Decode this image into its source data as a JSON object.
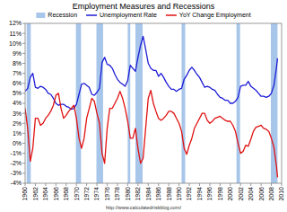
{
  "chart_data": {
    "type": "line",
    "title": "Employment Measures and Recessions",
    "source": "http://www.calculatedriskblog.com/",
    "legend": "top",
    "grid": false,
    "x": [
      1960,
      1960.5,
      1961,
      1961.5,
      1962,
      1962.5,
      1963,
      1963.5,
      1964,
      1964.5,
      1965,
      1965.5,
      1966,
      1966.5,
      1967,
      1967.5,
      1968,
      1968.5,
      1969,
      1969.5,
      1970,
      1970.5,
      1971,
      1971.5,
      1972,
      1972.5,
      1973,
      1973.5,
      1974,
      1974.5,
      1975,
      1975.5,
      1976,
      1976.5,
      1977,
      1977.5,
      1978,
      1978.5,
      1979,
      1979.5,
      1980,
      1980.5,
      1981,
      1981.5,
      1982,
      1982.5,
      1983,
      1983.5,
      1984,
      1984.5,
      1985,
      1985.5,
      1986,
      1986.5,
      1987,
      1987.5,
      1988,
      1988.5,
      1989,
      1989.5,
      1990,
      1990.5,
      1991,
      1991.5,
      1992,
      1992.5,
      1993,
      1993.5,
      1994,
      1994.5,
      1995,
      1995.5,
      1996,
      1996.5,
      1997,
      1997.5,
      1998,
      1998.5,
      1999,
      1999.5,
      2000,
      2000.5,
      2001,
      2001.5,
      2002,
      2002.5,
      2003,
      2003.5,
      2004,
      2004.5,
      2005,
      2005.5,
      2006,
      2006.5,
      2007,
      2007.5,
      2008,
      2008.5,
      2009,
      2009.2
    ],
    "series": [
      {
        "name": "Recession",
        "type": "span",
        "color": "#a8c6ea",
        "values": [
          [
            1960.3,
            1961.1
          ],
          [
            1969.9,
            1970.9
          ],
          [
            1973.9,
            1975.2
          ],
          [
            1980.0,
            1980.5
          ],
          [
            1981.5,
            1982.9
          ],
          [
            1990.5,
            1991.2
          ],
          [
            2001.2,
            2001.9
          ],
          [
            2007.9,
            2009.2
          ]
        ]
      },
      {
        "name": "Unemployment Rate",
        "type": "line",
        "color": "#1c1cd6",
        "values": [
          5.2,
          5.5,
          6.6,
          7.0,
          5.6,
          5.5,
          5.7,
          5.6,
          5.4,
          5.0,
          4.9,
          4.5,
          4.0,
          3.8,
          3.9,
          3.9,
          3.7,
          3.6,
          3.4,
          3.5,
          3.9,
          4.9,
          5.9,
          6.0,
          5.8,
          5.6,
          4.9,
          4.8,
          5.1,
          5.5,
          8.1,
          8.6,
          7.9,
          7.8,
          7.5,
          6.9,
          6.4,
          6.1,
          5.9,
          5.7,
          6.3,
          7.8,
          7.5,
          7.2,
          8.6,
          9.8,
          10.7,
          9.4,
          8.0,
          7.5,
          7.3,
          7.3,
          6.7,
          7.0,
          6.6,
          6.1,
          5.7,
          5.4,
          5.4,
          5.2,
          5.4,
          5.5,
          6.4,
          6.8,
          7.3,
          7.6,
          7.3,
          6.9,
          6.6,
          6.1,
          5.6,
          5.7,
          5.6,
          5.4,
          5.3,
          4.9,
          4.6,
          4.5,
          4.3,
          4.3,
          4.0,
          4.0,
          4.2,
          4.6,
          5.7,
          5.8,
          5.8,
          6.2,
          5.7,
          5.5,
          5.3,
          5.0,
          4.7,
          4.7,
          4.6,
          4.7,
          5.0,
          5.8,
          7.6,
          8.5
        ]
      },
      {
        "name": "YoY Change Employment",
        "type": "line",
        "color": "#e01010",
        "values": [
          3.5,
          1.5,
          -1.8,
          -0.5,
          2.5,
          2.5,
          1.8,
          2.0,
          2.5,
          2.8,
          3.2,
          3.8,
          4.8,
          5.0,
          3.5,
          2.5,
          2.8,
          3.2,
          3.5,
          3.8,
          2.5,
          0.5,
          -0.5,
          0.5,
          2.5,
          3.5,
          4.5,
          4.2,
          3.0,
          2.0,
          -1.0,
          -2.0,
          1.5,
          3.5,
          3.5,
          4.0,
          4.5,
          5.2,
          4.5,
          3.5,
          2.2,
          0.5,
          0.5,
          1.5,
          -0.5,
          -2.0,
          -1.5,
          1.5,
          4.5,
          5.3,
          4.0,
          3.2,
          2.5,
          2.3,
          2.5,
          2.8,
          3.2,
          3.2,
          3.0,
          2.5,
          2.0,
          1.2,
          -0.5,
          -1.1,
          -0.2,
          0.5,
          1.5,
          2.0,
          2.5,
          3.0,
          3.0,
          2.3,
          2.0,
          2.2,
          2.5,
          2.6,
          2.7,
          2.5,
          2.3,
          2.2,
          2.2,
          1.8,
          1.2,
          0.0,
          -1.0,
          -0.8,
          -0.2,
          -0.3,
          0.4,
          1.2,
          1.6,
          1.7,
          1.8,
          1.5,
          1.4,
          1.2,
          0.5,
          -0.4,
          -2.3,
          -3.4
        ]
      }
    ],
    "xlim": [
      1960,
      2010
    ],
    "xticks": [
      1960,
      1962,
      1964,
      1966,
      1968,
      1970,
      1972,
      1974,
      1976,
      1978,
      1980,
      1982,
      1984,
      1986,
      1988,
      1990,
      1992,
      1994,
      1996,
      1998,
      2000,
      2002,
      2004,
      2006,
      2008,
      2010
    ],
    "ylim": [
      -4,
      12
    ],
    "yticks": [
      {
        "value": -4,
        "label": "-4%"
      },
      {
        "value": -3,
        "label": "-3%"
      },
      {
        "value": -2,
        "label": "-2%"
      },
      {
        "value": -1,
        "label": "-1%"
      },
      {
        "value": 0,
        "label": "0%"
      },
      {
        "value": 1,
        "label": "1%"
      },
      {
        "value": 2,
        "label": "2%"
      },
      {
        "value": 3,
        "label": "3%"
      },
      {
        "value": 4,
        "label": "4%"
      },
      {
        "value": 5,
        "label": "5%"
      },
      {
        "value": 6,
        "label": "6%"
      },
      {
        "value": 7,
        "label": "7%"
      },
      {
        "value": 8,
        "label": "8%"
      },
      {
        "value": 9,
        "label": "9%"
      },
      {
        "value": 10,
        "label": "10%"
      },
      {
        "value": 11,
        "label": "11%"
      },
      {
        "value": 12,
        "label": "12%"
      }
    ]
  }
}
